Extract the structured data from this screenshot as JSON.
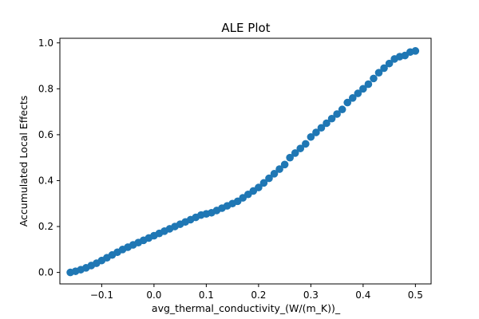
{
  "chart_data": {
    "type": "scatter",
    "title": "ALE Plot",
    "xlabel": "avg_thermal_conductivity_(W/(m_K))_",
    "ylabel": "Accumulated Local Effects",
    "xlim": [
      -0.18,
      0.53
    ],
    "ylim": [
      -0.05,
      1.02
    ],
    "xticks": [
      -0.1,
      0.0,
      0.1,
      0.2,
      0.3,
      0.4,
      0.5
    ],
    "xtick_labels": [
      "−0.1",
      "0.0",
      "0.1",
      "0.2",
      "0.3",
      "0.4",
      "0.5"
    ],
    "yticks": [
      0.0,
      0.2,
      0.4,
      0.6,
      0.8,
      1.0
    ],
    "ytick_labels": [
      "0.0",
      "0.2",
      "0.4",
      "0.6",
      "0.8",
      "1.0"
    ],
    "grid": false,
    "marker_color": "#1f77b4",
    "x": [
      -0.16,
      -0.15,
      -0.14,
      -0.13,
      -0.12,
      -0.11,
      -0.1,
      -0.09,
      -0.08,
      -0.07,
      -0.06,
      -0.05,
      -0.04,
      -0.03,
      -0.02,
      -0.01,
      0.0,
      0.01,
      0.02,
      0.03,
      0.04,
      0.05,
      0.06,
      0.07,
      0.08,
      0.09,
      0.1,
      0.11,
      0.12,
      0.13,
      0.14,
      0.15,
      0.16,
      0.17,
      0.18,
      0.19,
      0.2,
      0.21,
      0.22,
      0.23,
      0.24,
      0.25,
      0.26,
      0.27,
      0.28,
      0.29,
      0.3,
      0.31,
      0.32,
      0.33,
      0.34,
      0.35,
      0.36,
      0.37,
      0.38,
      0.39,
      0.4,
      0.41,
      0.42,
      0.43,
      0.44,
      0.45,
      0.46,
      0.47,
      0.48,
      0.49,
      0.5
    ],
    "y": [
      0.0,
      0.005,
      0.012,
      0.02,
      0.03,
      0.04,
      0.052,
      0.064,
      0.076,
      0.088,
      0.1,
      0.11,
      0.12,
      0.13,
      0.14,
      0.15,
      0.16,
      0.17,
      0.18,
      0.19,
      0.2,
      0.21,
      0.22,
      0.23,
      0.24,
      0.25,
      0.255,
      0.26,
      0.27,
      0.28,
      0.29,
      0.3,
      0.31,
      0.325,
      0.34,
      0.355,
      0.37,
      0.39,
      0.41,
      0.43,
      0.45,
      0.47,
      0.5,
      0.52,
      0.54,
      0.56,
      0.59,
      0.61,
      0.63,
      0.65,
      0.67,
      0.69,
      0.71,
      0.74,
      0.76,
      0.78,
      0.8,
      0.82,
      0.845,
      0.87,
      0.89,
      0.91,
      0.93,
      0.94,
      0.945,
      0.96,
      0.965
    ]
  }
}
